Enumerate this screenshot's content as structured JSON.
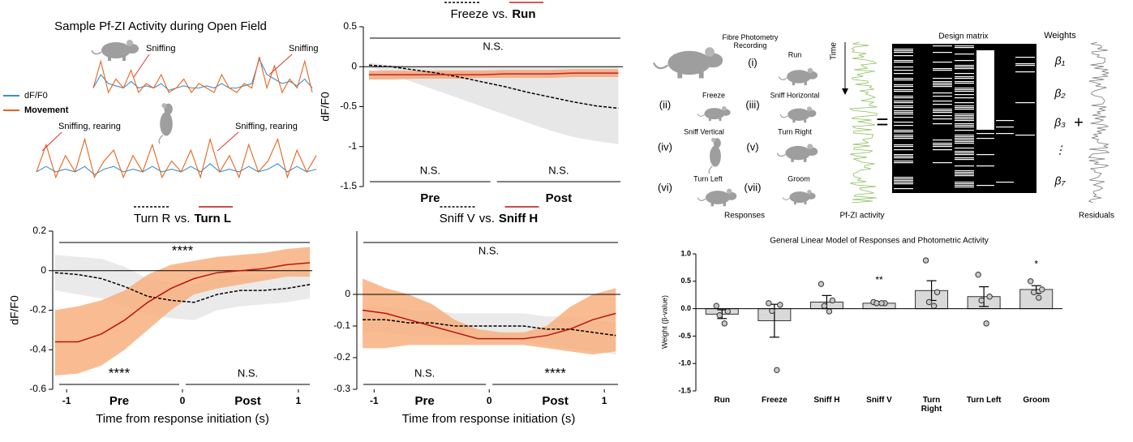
{
  "chart_data": [
    {
      "type": "trace",
      "title": "Sample Pf-ZI Activity during Open Field",
      "series": [
        {
          "name": "dF/F0",
          "color": "#3b8fd0",
          "rows": [
            [
              0.3,
              0.6,
              0.4,
              0.35,
              0.3,
              0.45,
              0.3,
              0.35,
              0.3,
              0.4,
              0.25,
              0.3,
              0.35,
              0.3,
              0.3,
              0.35,
              0.3,
              0.4,
              0.3,
              0.3,
              0.35,
              0.4,
              0.95,
              0.6,
              0.5,
              0.4,
              0.45,
              0.35,
              0.5,
              0.3
            ],
            [
              0.3,
              0.4,
              0.3,
              0.35,
              0.3,
              0.4,
              0.25,
              0.35,
              0.4,
              0.3,
              0.35,
              0.3,
              0.4,
              0.3,
              0.35,
              0.3,
              0.4,
              0.3,
              0.45,
              0.3,
              0.35,
              0.3,
              0.4,
              0.3,
              0.35,
              0.45,
              0.3,
              0.4,
              0.3,
              0.35
            ]
          ]
        },
        {
          "name": "Movement",
          "color": "#e8641e",
          "rows": [
            [
              0.3,
              0.9,
              0.2,
              0.5,
              0.3,
              0.7,
              0.2,
              0.4,
              0.3,
              0.6,
              0.2,
              0.3,
              0.5,
              0.2,
              0.4,
              0.3,
              0.2,
              0.6,
              0.3,
              0.2,
              0.4,
              0.3,
              1.0,
              0.3,
              0.8,
              0.2,
              0.5,
              0.3,
              0.9,
              0.2
            ],
            [
              0.3,
              0.8,
              0.2,
              0.6,
              0.3,
              0.9,
              0.2,
              0.5,
              0.7,
              0.2,
              0.6,
              0.3,
              0.8,
              0.2,
              0.5,
              0.3,
              0.7,
              0.2,
              0.9,
              0.3,
              0.6,
              0.2,
              0.8,
              0.3,
              0.5,
              0.9,
              0.2,
              0.7,
              0.3,
              0.6
            ]
          ]
        }
      ],
      "annotations": [
        "Sniffing",
        "Sniffing",
        "Sniffing, rearing",
        "Sniffing, rearing"
      ]
    },
    {
      "type": "line",
      "title_joiner": "vs.",
      "ylabel": "dF/F0",
      "x": [
        -1.1,
        -0.9,
        -0.7,
        -0.5,
        -0.3,
        -0.1,
        0.1,
        0.3,
        0.5,
        0.7,
        0.9,
        1.1
      ],
      "xlim": [
        -1.15,
        1.14
      ],
      "ylim": [
        -1.5,
        0.5
      ],
      "yticks": [
        -1.5,
        -1,
        -0.5,
        0,
        0.5
      ],
      "series": [
        {
          "name": "Freeze",
          "color": "#000000",
          "dashed": true,
          "band_color": "#e3e3e3",
          "values": [
            0.02,
            0,
            -0.04,
            -0.08,
            -0.13,
            -0.19,
            -0.25,
            -0.32,
            -0.38,
            -0.44,
            -0.49,
            -0.52
          ],
          "lower": [
            0,
            -0.1,
            -0.2,
            -0.3,
            -0.4,
            -0.5,
            -0.6,
            -0.7,
            -0.8,
            -0.88,
            -0.93,
            -0.97
          ],
          "upper": [
            0.05,
            0.02,
            0,
            0,
            0,
            0,
            0,
            0,
            0,
            0,
            0,
            0
          ]
        },
        {
          "name": "Run",
          "color": "#c8231a",
          "dashed": false,
          "band_color": "#f5a77a",
          "values": [
            -0.1,
            -0.1,
            -0.1,
            -0.1,
            -0.1,
            -0.1,
            -0.09,
            -0.09,
            -0.09,
            -0.08,
            -0.08,
            -0.08
          ],
          "lower": [
            -0.16,
            -0.16,
            -0.15,
            -0.15,
            -0.15,
            -0.14,
            -0.14,
            -0.14,
            -0.14,
            -0.13,
            -0.13,
            -0.13
          ],
          "upper": [
            -0.05,
            -0.05,
            -0.05,
            -0.05,
            -0.05,
            -0.05,
            -0.04,
            -0.04,
            -0.04,
            -0.03,
            -0.03,
            -0.03
          ]
        }
      ],
      "significance": {
        "overall": "N.S.",
        "pre": "N.S.",
        "post": "N.S."
      },
      "phases": [
        "Pre",
        "Post"
      ]
    },
    {
      "type": "line",
      "title_joiner": "vs.",
      "ylabel": "dF/F0",
      "xlabel": "Time from response initiation (s)",
      "x": [
        -1.1,
        -0.9,
        -0.7,
        -0.5,
        -0.3,
        -0.1,
        0.1,
        0.3,
        0.5,
        0.7,
        0.9,
        1.1
      ],
      "xlim": [
        -1.12,
        1.12
      ],
      "ylim": [
        -0.6,
        0.2
      ],
      "xticks": [
        -1,
        0,
        1
      ],
      "yticks": [
        -0.6,
        -0.4,
        -0.2,
        0,
        0.2
      ],
      "series": [
        {
          "name": "Turn R",
          "color": "#000000",
          "dashed": true,
          "band_color": "#e6e6e6",
          "values": [
            -0.01,
            -0.02,
            -0.04,
            -0.08,
            -0.13,
            -0.15,
            -0.16,
            -0.12,
            -0.1,
            -0.1,
            -0.09,
            -0.07
          ],
          "lower": [
            -0.1,
            -0.12,
            -0.14,
            -0.18,
            -0.22,
            -0.24,
            -0.25,
            -0.2,
            -0.18,
            -0.17,
            -0.16,
            -0.14
          ],
          "upper": [
            0.08,
            0.07,
            0.06,
            0.02,
            -0.04,
            -0.06,
            -0.07,
            -0.04,
            -0.02,
            -0.02,
            -0.01,
            0
          ]
        },
        {
          "name": "Turn L",
          "color": "#b8140f",
          "dashed": false,
          "band_color": "#f8b07f",
          "values": [
            -0.36,
            -0.36,
            -0.32,
            -0.25,
            -0.16,
            -0.09,
            -0.04,
            -0.01,
            0,
            0.01,
            0.03,
            0.04
          ],
          "lower": [
            -0.53,
            -0.52,
            -0.48,
            -0.4,
            -0.3,
            -0.2,
            -0.12,
            -0.09,
            -0.07,
            -0.05,
            -0.03,
            -0.03
          ],
          "upper": [
            -0.2,
            -0.18,
            -0.15,
            -0.1,
            -0.02,
            0.03,
            0.05,
            0.07,
            0.08,
            0.09,
            0.11,
            0.12
          ]
        }
      ],
      "significance": {
        "overall": "****",
        "pre": "****",
        "post": "N.S."
      },
      "phases": [
        "Pre",
        "Post"
      ]
    },
    {
      "type": "line",
      "title_joiner": "vs.",
      "xlabel": "Time from response initiation (s)",
      "x": [
        -1.1,
        -0.9,
        -0.7,
        -0.5,
        -0.3,
        -0.1,
        0.1,
        0.3,
        0.5,
        0.7,
        0.9,
        1.1
      ],
      "xlim": [
        -1.15,
        1.14
      ],
      "ylim": [
        -0.3,
        0.2
      ],
      "xticks": [
        -1,
        0,
        1
      ],
      "yticks": [
        -0.3,
        -0.2,
        -0.1,
        0
      ],
      "series": [
        {
          "name": "Sniff V",
          "color": "#000000",
          "dashed": true,
          "band_color": "#e6e6e6",
          "values": [
            -0.08,
            -0.08,
            -0.09,
            -0.09,
            -0.1,
            -0.1,
            -0.1,
            -0.1,
            -0.11,
            -0.11,
            -0.12,
            -0.13
          ],
          "lower": [
            -0.12,
            -0.12,
            -0.13,
            -0.13,
            -0.14,
            -0.14,
            -0.14,
            -0.15,
            -0.16,
            -0.17,
            -0.18,
            -0.19
          ],
          "upper": [
            -0.04,
            -0.04,
            -0.05,
            -0.05,
            -0.06,
            -0.06,
            -0.06,
            -0.06,
            -0.07,
            -0.07,
            -0.08,
            -0.09
          ]
        },
        {
          "name": "Sniff H",
          "color": "#b8140f",
          "dashed": false,
          "band_color": "#f8b07f",
          "values": [
            -0.05,
            -0.06,
            -0.08,
            -0.1,
            -0.12,
            -0.14,
            -0.14,
            -0.14,
            -0.13,
            -0.11,
            -0.08,
            -0.06
          ],
          "lower": [
            -0.17,
            -0.17,
            -0.16,
            -0.16,
            -0.16,
            -0.16,
            -0.16,
            -0.16,
            -0.17,
            -0.18,
            -0.19,
            -0.18
          ],
          "upper": [
            0.05,
            0.02,
            0,
            -0.03,
            -0.08,
            -0.11,
            -0.12,
            -0.12,
            -0.1,
            -0.04,
            0,
            0.02
          ]
        }
      ],
      "significance": {
        "overall": "N.S.",
        "pre": "N.S.",
        "post": "****"
      },
      "phases": [
        "Pre",
        "Post"
      ]
    },
    {
      "type": "bar",
      "title": "General Linear Model of Responses and Photometric Activity",
      "ylabel": "Weight (β-value)",
      "categories": [
        "Run",
        "Freeze",
        "Sniff H",
        "Sniff V",
        "Turn Right",
        "Turn Left",
        "Groom"
      ],
      "values": [
        -0.1,
        -0.22,
        0.12,
        0.1,
        0.33,
        0.22,
        0.35
      ],
      "errors": [
        0.08,
        0.3,
        0.12,
        0.03,
        0.18,
        0.18,
        0.07
      ],
      "points": [
        [
          0.05,
          -0.05,
          -0.12,
          -0.27
        ],
        [
          0.1,
          0.07,
          -0.04,
          -1.12
        ],
        [
          0.45,
          0.15,
          0.05,
          -0.05
        ],
        [
          0.12,
          0.1,
          0.1,
          0.1
        ],
        [
          0.88,
          0.3,
          0.12,
          0.05
        ],
        [
          0.62,
          0.22,
          0.15,
          -0.27
        ],
        [
          0.5,
          0.35,
          0.3,
          0.2
        ]
      ],
      "significance": [
        null,
        null,
        null,
        "**",
        null,
        null,
        "*"
      ],
      "ylim": [
        -1.5,
        1
      ],
      "yticks": [
        -1.5,
        {
          "value": -1,
          "label": "-1.0"
        },
        -0.5,
        {
          "value": 0,
          "label": "0.0"
        },
        0.5,
        {
          "value": 1,
          "label": "1.0"
        }
      ],
      "color": "#d9d9d9"
    }
  ],
  "diagram": {
    "recording": "Fibre Photometry Recording",
    "responses": [
      {
        "index": "(i)",
        "name": "Run"
      },
      {
        "index": "(ii)",
        "name": "Freeze"
      },
      {
        "index": "(iii)",
        "name": "Sniff Horizontal"
      },
      {
        "index": "(iv)",
        "name": "Sniff Vertical"
      },
      {
        "index": "(v)",
        "name": "Turn Right"
      },
      {
        "index": "(vi)",
        "name": "Turn Left"
      },
      {
        "index": "(vii)",
        "name": "Groom"
      }
    ],
    "responses_label": "Responses",
    "time_label": "Time",
    "signal_label": "Pf-ZI activity",
    "equals": "=",
    "matrix_label": "Design matrix",
    "weights_label": "Weights",
    "weights": [
      "β₁",
      "β₂",
      "β₃",
      "⋮",
      "β₇"
    ],
    "plus": "+",
    "residuals_label": "Residuals"
  }
}
